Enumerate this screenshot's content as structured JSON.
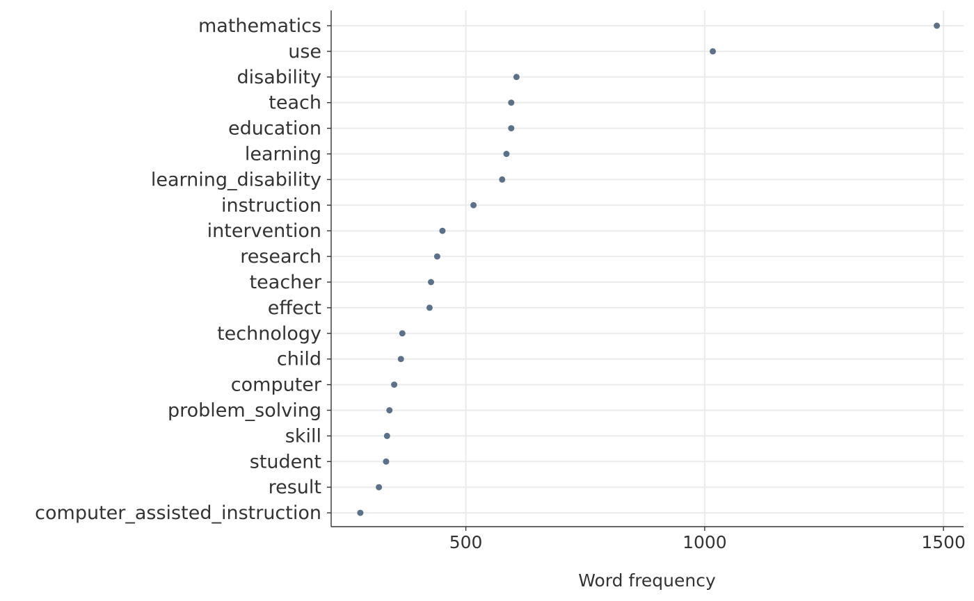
{
  "chart_data": {
    "type": "scatter",
    "title": "",
    "xlabel": "Word frequency",
    "ylabel": "",
    "xlim": [
      218,
      1542
    ],
    "x_ticks": [
      500,
      1000,
      1500
    ],
    "grid": true,
    "point_color": "#5b7089",
    "categories": [
      "mathematics",
      "use",
      "disability",
      "teach",
      "education",
      "learning",
      "learning_disability",
      "instruction",
      "intervention",
      "research",
      "teacher",
      "effect",
      "technology",
      "child",
      "computer",
      "problem_solving",
      "skill",
      "student",
      "result",
      "computer_assisted_instruction"
    ],
    "values": [
      1486,
      1017,
      606,
      595,
      595,
      585,
      576,
      516,
      451,
      440,
      427,
      424,
      367,
      364,
      350,
      340,
      335,
      333,
      318,
      279
    ]
  }
}
